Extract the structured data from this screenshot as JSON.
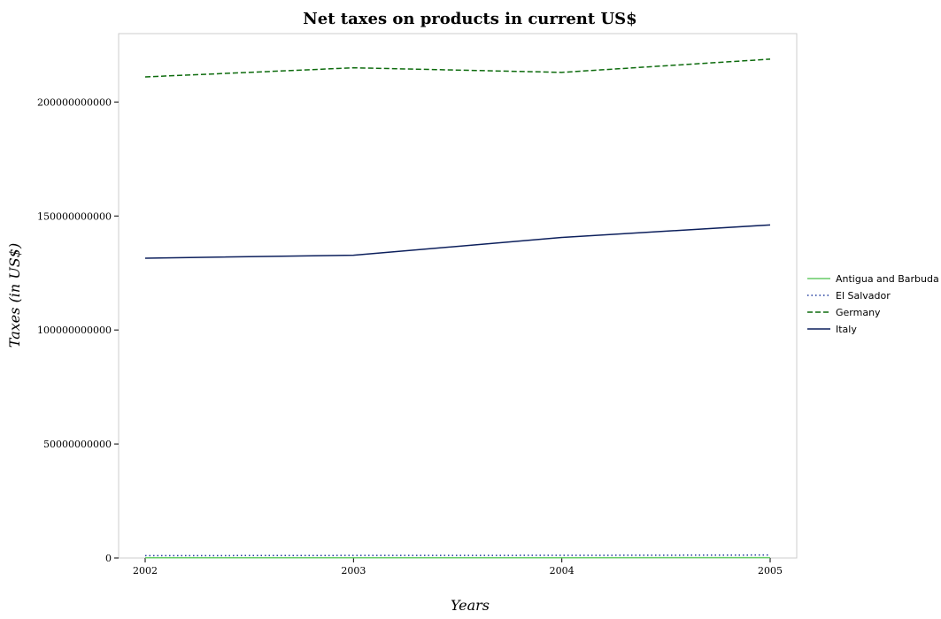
{
  "chart_data": {
    "type": "line",
    "title": "Net taxes on products in current US$",
    "xlabel": "Years",
    "ylabel": "Taxes (in US$)",
    "x": [
      2002,
      2003,
      2004,
      2005
    ],
    "x_tick_labels": [
      "2002",
      "2003",
      "2004",
      "2005"
    ],
    "ylim": [
      0,
      230000000000
    ],
    "y_ticks": [
      0,
      50000000000,
      100000000000,
      150000000000,
      200000000000
    ],
    "y_tick_labels": [
      "0",
      "50000000000",
      "100000000000",
      "150000000000",
      "200000000000"
    ],
    "grid": false,
    "legend_position": "right",
    "series": [
      {
        "name": "Antigua and Barbuda",
        "color": "#66cc66",
        "dash": "solid",
        "values": [
          100000000,
          110000000,
          120000000,
          140000000
        ]
      },
      {
        "name": "El Salvador",
        "color": "#1f3a9e",
        "dash": "dotted",
        "values": [
          1000000000,
          1100000000,
          1150000000,
          1300000000
        ]
      },
      {
        "name": "Germany",
        "color": "#0d6b0d",
        "dash": "dashed",
        "values": [
          211000000000,
          215000000000,
          213000000000,
          218800000000
        ]
      },
      {
        "name": "Italy",
        "color": "#0c1f5c",
        "dash": "solid",
        "values": [
          131500000000,
          132800000000,
          140600000000,
          146100000000
        ]
      }
    ]
  }
}
